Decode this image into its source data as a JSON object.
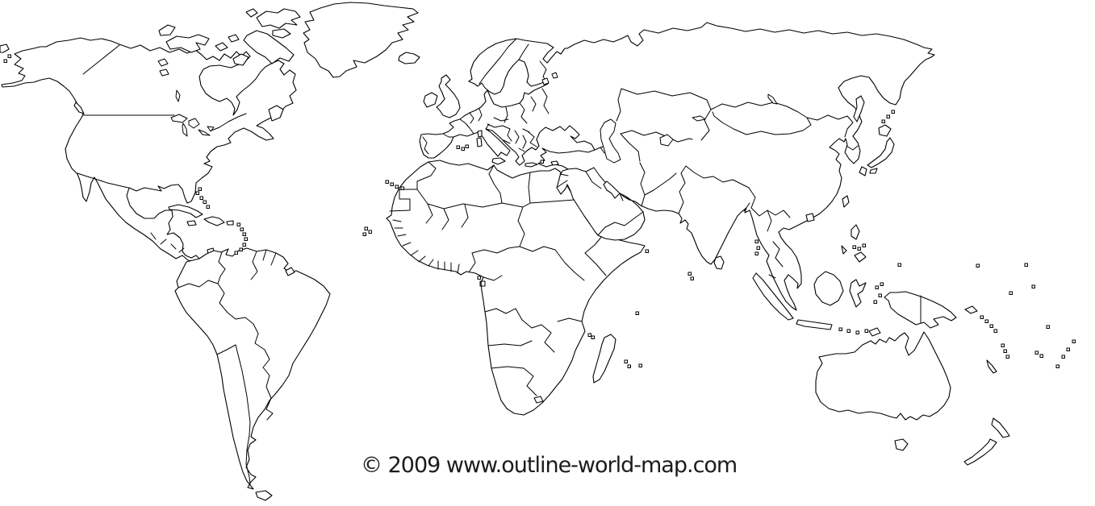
{
  "map": {
    "kind": "blank-outline-world-map",
    "stroke_color": "#000000",
    "land_fill": "#ffffff",
    "ocean_fill": "#ffffff",
    "regions": [
      "North America",
      "South America",
      "Greenland",
      "Europe",
      "Africa",
      "Asia",
      "Australia",
      "New Zealand",
      "Pacific Islands"
    ]
  },
  "footer": {
    "copyright": "© 2009 www.outline-world-map.com"
  }
}
